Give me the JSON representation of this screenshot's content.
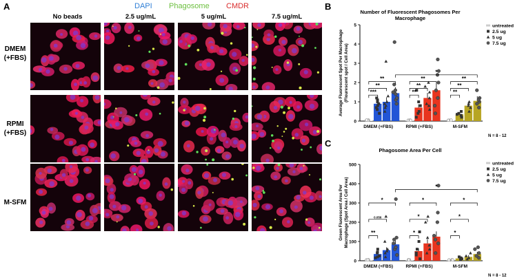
{
  "panel_a": {
    "letter": "A",
    "stain_legend": [
      {
        "label": "DAPI",
        "color": "#2f7fd6"
      },
      {
        "label": "Phagosome",
        "color": "#6cbf3f"
      },
      {
        "label": "CMDR",
        "color": "#d92b2b"
      }
    ],
    "columns": [
      "No beads",
      "2.5 ug/mL",
      "5 ug/mL",
      "7.5 ug/mL"
    ],
    "rows": [
      "DMEM\n(+FBS)",
      "RPMI\n(+FBS)",
      "M-SFM"
    ]
  },
  "chart_data": [
    {
      "panel": "B",
      "type": "bar",
      "title": "Number of Fluorescent Phagosomes Per Macrophage",
      "ylabel": "Average Fluorescent Spot Per Macrophage (Flourescent spot / Cell Area)",
      "ylabel_lines": [
        "Average Fluorescent Spot Per Macrophage",
        "(Flourescent spot / Cell Area)"
      ],
      "xlabel": "",
      "categories": [
        "DMEM (+FBS)",
        "RPMI (+FBS)",
        "M-SFM"
      ],
      "ylim": [
        0,
        5
      ],
      "yticks": [
        0,
        1,
        2,
        3,
        4,
        5
      ],
      "series": [
        {
          "name": "untreated",
          "marker": "circle-open",
          "values": [
            0.02,
            0.02,
            0.02
          ]
        },
        {
          "name": "2.5 ug",
          "marker": "square",
          "values": [
            0.9,
            0.7,
            0.35
          ]
        },
        {
          "name": "5 ug",
          "marker": "triangle",
          "values": [
            1.0,
            1.2,
            0.8
          ]
        },
        {
          "name": "7.5 ug",
          "marker": "circle",
          "values": [
            1.45,
            1.6,
            1.05
          ]
        }
      ],
      "bar_colors": [
        [
          "#d9d9d9",
          "#2255d6",
          "#2255d6",
          "#2255d6"
        ],
        [
          "#d9d9d9",
          "#e8351f",
          "#e8351f",
          "#e8351f"
        ],
        [
          "#d9d9d9",
          "#b7a523",
          "#b7a523",
          "#b7a523"
        ]
      ],
      "points": [
        [
          [
            0.01,
            0.02,
            0.01,
            0.02
          ],
          [
            0.4,
            0.6,
            0.8,
            1.0,
            1.1,
            1.2,
            0.7,
            0.9
          ],
          [
            0.5,
            0.8,
            1.0,
            1.3,
            3.1,
            0.9,
            0.7
          ],
          [
            0.9,
            1.1,
            1.4,
            1.6,
            1.9,
            4.1,
            1.2,
            1.5
          ]
        ],
        [
          [
            0.01,
            0.02,
            0.01
          ],
          [
            0.2,
            0.4,
            0.8,
            1.0,
            1.6,
            0.5
          ],
          [
            0.6,
            0.9,
            1.2,
            1.8,
            2.0,
            0.8,
            1.5
          ],
          [
            0.4,
            0.8,
            1.2,
            2.0,
            2.4,
            2.6,
            3.2,
            1.6
          ]
        ],
        [
          [
            0.01,
            0.02,
            0.01
          ],
          [
            0.2,
            0.3,
            0.4,
            0.5,
            0.35
          ],
          [
            0.5,
            0.7,
            0.9,
            1.0,
            0.8
          ],
          [
            0.7,
            0.9,
            1.0,
            1.2,
            1.6,
            1.1
          ]
        ]
      ],
      "significance": [
        {
          "x1": [
            0,
            0
          ],
          "x2": [
            0,
            1
          ],
          "level": 1.35,
          "label": "***"
        },
        {
          "x1": [
            0,
            0
          ],
          "x2": [
            0,
            2
          ],
          "level": 1.7,
          "label": "**"
        },
        {
          "x1": [
            0,
            0
          ],
          "x2": [
            0,
            3
          ],
          "level": 2.05,
          "label": "**"
        },
        {
          "x1": [
            1,
            0
          ],
          "x2": [
            1,
            1
          ],
          "level": 1.35,
          "label": "**"
        },
        {
          "x1": [
            1,
            0
          ],
          "x2": [
            1,
            2
          ],
          "level": 1.7,
          "label": "**"
        },
        {
          "x1": [
            1,
            0
          ],
          "x2": [
            1,
            3
          ],
          "level": 2.05,
          "label": "**"
        },
        {
          "x1": [
            2,
            0
          ],
          "x2": [
            2,
            1
          ],
          "level": 1.35,
          "label": "**"
        },
        {
          "x1": [
            2,
            0
          ],
          "x2": [
            2,
            2
          ],
          "level": 1.7,
          "label": "**"
        },
        {
          "x1": [
            2,
            0
          ],
          "x2": [
            2,
            3
          ],
          "level": 2.05,
          "label": "**"
        },
        {
          "x1": [
            0,
            3
          ],
          "x2": [
            2,
            3
          ],
          "level": 2.4,
          "label": "*"
        }
      ],
      "legend": [
        "untreated",
        "2.5 ug",
        "5 ug",
        "7.5 ug"
      ],
      "note": "N = 8 - 12"
    },
    {
      "panel": "C",
      "type": "bar",
      "title": "Phagosome Area Per Cell",
      "ylabel": "Green Fluorescent Area Per Macrophage (Spot Area / Cell Area)",
      "ylabel_lines": [
        "Green Fluorescent Area Per",
        "Macrophage (Spot Area / Cell Area)"
      ],
      "xlabel": "",
      "categories": [
        "DMEM (+FBS)",
        "RPMI (+FBS)",
        "M-SFM"
      ],
      "ylim": [
        0,
        500
      ],
      "yticks": [
        0,
        100,
        200,
        300,
        400,
        500
      ],
      "series": [
        {
          "name": "untreated",
          "marker": "circle-open",
          "values": [
            2,
            2,
            2
          ]
        },
        {
          "name": "2.5 ug",
          "marker": "square",
          "values": [
            35,
            50,
            12
          ]
        },
        {
          "name": "5 ug",
          "marker": "triangle",
          "values": [
            55,
            90,
            20
          ]
        },
        {
          "name": "7.5 ug",
          "marker": "circle",
          "values": [
            85,
            125,
            35
          ]
        }
      ],
      "bar_colors": [
        [
          "#d9d9d9",
          "#2255d6",
          "#2255d6",
          "#2255d6"
        ],
        [
          "#d9d9d9",
          "#e8351f",
          "#e8351f",
          "#e8351f"
        ],
        [
          "#d9d9d9",
          "#b7a523",
          "#b7a523",
          "#b7a523"
        ]
      ],
      "points": [
        [
          [
            1,
            2,
            1
          ],
          [
            15,
            25,
            40,
            60,
            20,
            45
          ],
          [
            20,
            40,
            60,
            100,
            230,
            50
          ],
          [
            30,
            60,
            90,
            110,
            120,
            320,
            70
          ]
        ],
        [
          [
            1,
            2,
            1
          ],
          [
            10,
            30,
            60,
            100,
            150,
            40
          ],
          [
            40,
            80,
            120,
            200,
            230,
            60
          ],
          [
            40,
            90,
            130,
            200,
            250,
            390,
            110
          ]
        ],
        [
          [
            1,
            2,
            1
          ],
          [
            5,
            10,
            15,
            20
          ],
          [
            8,
            15,
            25,
            40
          ],
          [
            15,
            25,
            40,
            60,
            70
          ]
        ]
      ],
      "significance": [
        {
          "x1": [
            0,
            0
          ],
          "x2": [
            0,
            1
          ],
          "level": 130,
          "label": "**"
        },
        {
          "x1": [
            0,
            0
          ],
          "x2": [
            0,
            2
          ],
          "level": 215,
          "label": "0.056"
        },
        {
          "x1": [
            0,
            0
          ],
          "x2": [
            0,
            3
          ],
          "level": 300,
          "label": "*"
        },
        {
          "x1": [
            1,
            0
          ],
          "x2": [
            1,
            1
          ],
          "level": 130,
          "label": "*"
        },
        {
          "x1": [
            1,
            0
          ],
          "x2": [
            1,
            2
          ],
          "level": 215,
          "label": "*"
        },
        {
          "x1": [
            1,
            0
          ],
          "x2": [
            1,
            3
          ],
          "level": 300,
          "label": "*"
        },
        {
          "x1": [
            2,
            0
          ],
          "x2": [
            2,
            1
          ],
          "level": 130,
          "label": "*"
        },
        {
          "x1": [
            2,
            0
          ],
          "x2": [
            2,
            2
          ],
          "level": 215,
          "label": "*"
        },
        {
          "x1": [
            2,
            0
          ],
          "x2": [
            2,
            3
          ],
          "level": 300,
          "label": "*"
        },
        {
          "x1": [
            0,
            3
          ],
          "x2": [
            2,
            3
          ],
          "level": 370,
          "label": "*"
        }
      ],
      "legend": [
        "untreated",
        "2.5 ug",
        "5 ug",
        "7.5 ug"
      ],
      "note": "N = 8 - 12"
    }
  ]
}
